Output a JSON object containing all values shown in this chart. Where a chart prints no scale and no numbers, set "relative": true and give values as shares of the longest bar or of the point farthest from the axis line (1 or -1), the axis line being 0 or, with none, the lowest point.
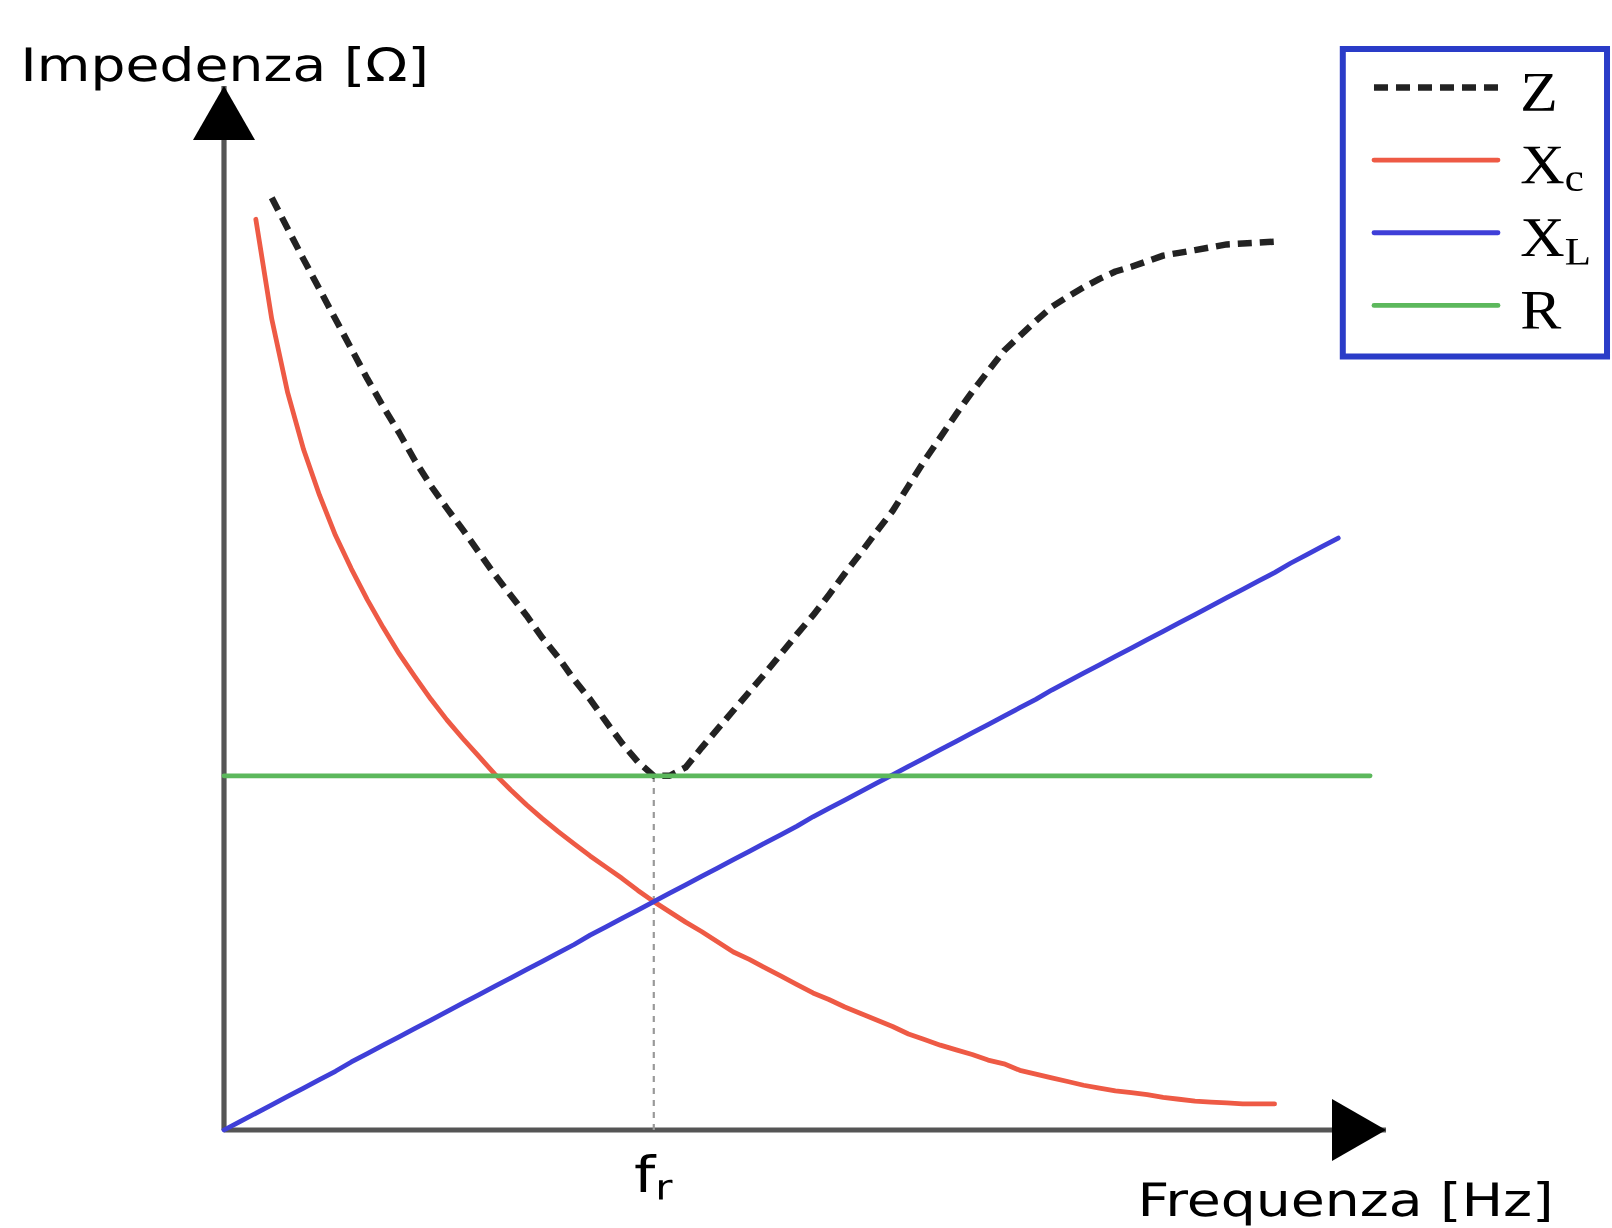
{
  "chart_data": {
    "type": "line",
    "relative": true,
    "xlabel": "Frequenza [Hz]",
    "ylabel": "Impedenza [Ω]",
    "categories": [
      null,
      null,
      null,
      null,
      null,
      null,
      null,
      null,
      null,
      null,
      null,
      null,
      null,
      null,
      null,
      null,
      null,
      null,
      null,
      null,
      null,
      null,
      null,
      null,
      null,
      null,
      null,
      null,
      null,
      null,
      null,
      null,
      null,
      null,
      null,
      null,
      null,
      null,
      null,
      null,
      null,
      null,
      null,
      null,
      null,
      null,
      null,
      null,
      null,
      null,
      null,
      null,
      null,
      null,
      null,
      null,
      null,
      null,
      null,
      null,
      null,
      null,
      null,
      null,
      null,
      null,
      null,
      null,
      null,
      null,
      null,
      null,
      null
    ],
    "series": [
      {
        "name": "Z",
        "color": "#222222",
        "line_style": "dashed",
        "values": [
          null,
          null,
          null,
          1,
          0.967,
          0.934,
          0.902,
          0.87,
          0.838,
          0.806,
          0.776,
          0.748,
          0.718,
          0.691,
          0.667,
          0.644,
          0.62,
          0.596,
          0.574,
          0.552,
          0.528,
          0.507,
          0.483,
          0.462,
          0.438,
          0.415,
          0.395,
          0.38,
          0.38,
          0.389,
          0.41,
          0.43,
          0.45,
          0.47,
          0.49,
          0.511,
          0.532,
          0.552,
          0.574,
          0.597,
          0.619,
          0.642,
          0.664,
          0.691,
          0.718,
          0.743,
          0.768,
          0.792,
          0.814,
          0.836,
          0.852,
          0.868,
          0.883,
          0.894,
          0.904,
          0.913,
          0.921,
          0.926,
          0.932,
          0.938,
          0.941,
          0.944,
          0.947,
          0.95,
          0.951,
          0.952,
          0.953,
          null,
          null,
          null,
          null,
          null,
          null
        ]
      },
      {
        "name": "X$_{c}$",
        "color": "#ee5a45",
        "values": [
          null,
          null,
          0.977,
          0.87,
          0.791,
          0.73,
          0.681,
          0.638,
          0.602,
          0.569,
          0.539,
          0.511,
          0.486,
          0.462,
          0.44,
          0.42,
          0.401,
          0.382,
          0.365,
          0.349,
          0.334,
          0.32,
          0.307,
          0.294,
          0.282,
          0.27,
          0.257,
          0.245,
          0.234,
          0.223,
          0.213,
          0.202,
          0.191,
          0.183,
          0.174,
          0.165,
          0.156,
          0.147,
          0.14,
          0.132,
          0.125,
          0.118,
          0.111,
          0.103,
          0.097,
          0.091,
          0.086,
          0.081,
          0.075,
          0.071,
          0.064,
          0.06,
          0.056,
          0.052,
          0.048,
          0.045,
          0.042,
          0.04,
          0.038,
          0.035,
          0.033,
          0.031,
          0.03,
          0.029,
          0.028,
          0.028,
          0.028,
          null,
          null,
          null,
          null,
          null,
          null
        ]
      },
      {
        "name": "X$_{L}$",
        "color": "#3f3fd8",
        "values": [
          0,
          0.009,
          0.018,
          0.027,
          0.036,
          0.045,
          0.054,
          0.063,
          0.073,
          0.082,
          0.091,
          0.1,
          0.109,
          0.118,
          0.127,
          0.136,
          0.145,
          0.154,
          0.163,
          0.172,
          0.181,
          0.19,
          0.199,
          0.209,
          0.218,
          0.227,
          0.236,
          0.245,
          0.254,
          0.263,
          0.272,
          0.281,
          0.29,
          0.299,
          0.308,
          0.317,
          0.326,
          0.336,
          0.345,
          0.354,
          0.363,
          0.372,
          0.381,
          0.39,
          0.399,
          0.408,
          0.417,
          0.426,
          0.435,
          0.444,
          0.453,
          0.462,
          0.472,
          0.481,
          0.49,
          0.499,
          0.508,
          0.517,
          0.526,
          0.535,
          0.544,
          0.553,
          0.562,
          0.571,
          0.58,
          0.589,
          0.598,
          0.608,
          0.617,
          0.626,
          0.635,
          null,
          null
        ]
      },
      {
        "name": "R",
        "color": "#5cb85c",
        "values": [
          0.38,
          0.38,
          0.38,
          0.38,
          0.38,
          0.38,
          0.38,
          0.38,
          0.38,
          0.38,
          0.38,
          0.38,
          0.38,
          0.38,
          0.38,
          0.38,
          0.38,
          0.38,
          0.38,
          0.38,
          0.38,
          0.38,
          0.38,
          0.38,
          0.38,
          0.38,
          0.38,
          0.38,
          0.38,
          0.38,
          0.38,
          0.38,
          0.38,
          0.38,
          0.38,
          0.38,
          0.38,
          0.38,
          0.38,
          0.38,
          0.38,
          0.38,
          0.38,
          0.38,
          0.38,
          0.38,
          0.38,
          0.38,
          0.38,
          0.38,
          0.38,
          0.38,
          0.38,
          0.38,
          0.38,
          0.38,
          0.38,
          0.38,
          0.38,
          0.38,
          0.38,
          0.38,
          0.38,
          0.38,
          0.38,
          0.38,
          0.38,
          0.38,
          0.38,
          0.38,
          0.38,
          0.38,
          0.38
        ]
      }
    ],
    "annotations": [
      "f$_{r}$"
    ],
    "legend": "top right"
  }
}
